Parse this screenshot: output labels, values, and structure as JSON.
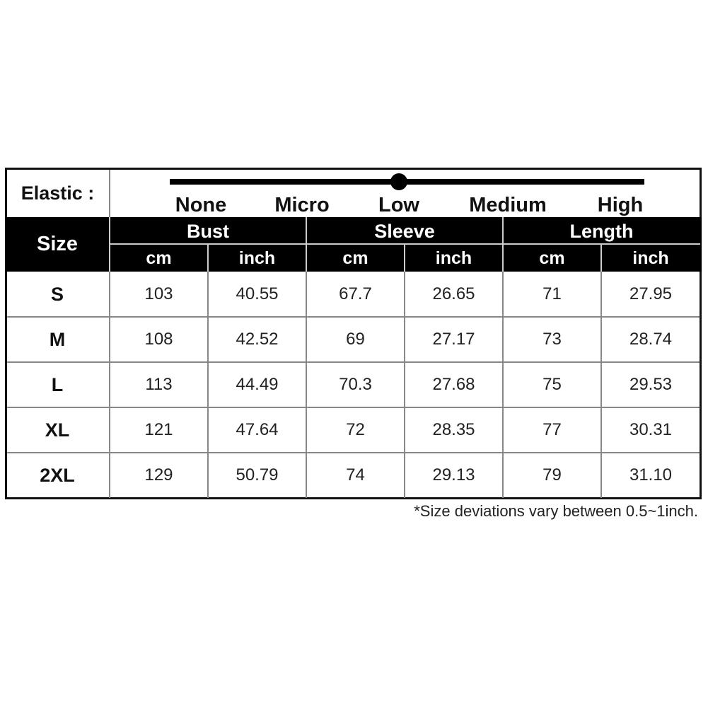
{
  "elastic": {
    "label": "Elastic :",
    "levels": [
      "None",
      "Micro",
      "Low",
      "Medium",
      "High"
    ],
    "selected": "Low"
  },
  "header": {
    "size": "Size",
    "groups": [
      "Bust",
      "Sleeve",
      "Length"
    ],
    "units": [
      "cm",
      "inch",
      "cm",
      "inch",
      "cm",
      "inch"
    ]
  },
  "rows": [
    {
      "size": "S",
      "values": [
        "103",
        "40.55",
        "67.7",
        "26.65",
        "71",
        "27.95"
      ]
    },
    {
      "size": "M",
      "values": [
        "108",
        "42.52",
        "69",
        "27.17",
        "73",
        "28.74"
      ]
    },
    {
      "size": "L",
      "values": [
        "113",
        "44.49",
        "70.3",
        "27.68",
        "75",
        "29.53"
      ]
    },
    {
      "size": "XL",
      "values": [
        "121",
        "47.64",
        "72",
        "28.35",
        "77",
        "30.31"
      ]
    },
    {
      "size": "2XL",
      "values": [
        "129",
        "50.79",
        "74",
        "29.13",
        "79",
        "31.10"
      ]
    }
  ],
  "footnote": "*Size deviations vary between 0.5~1inch."
}
